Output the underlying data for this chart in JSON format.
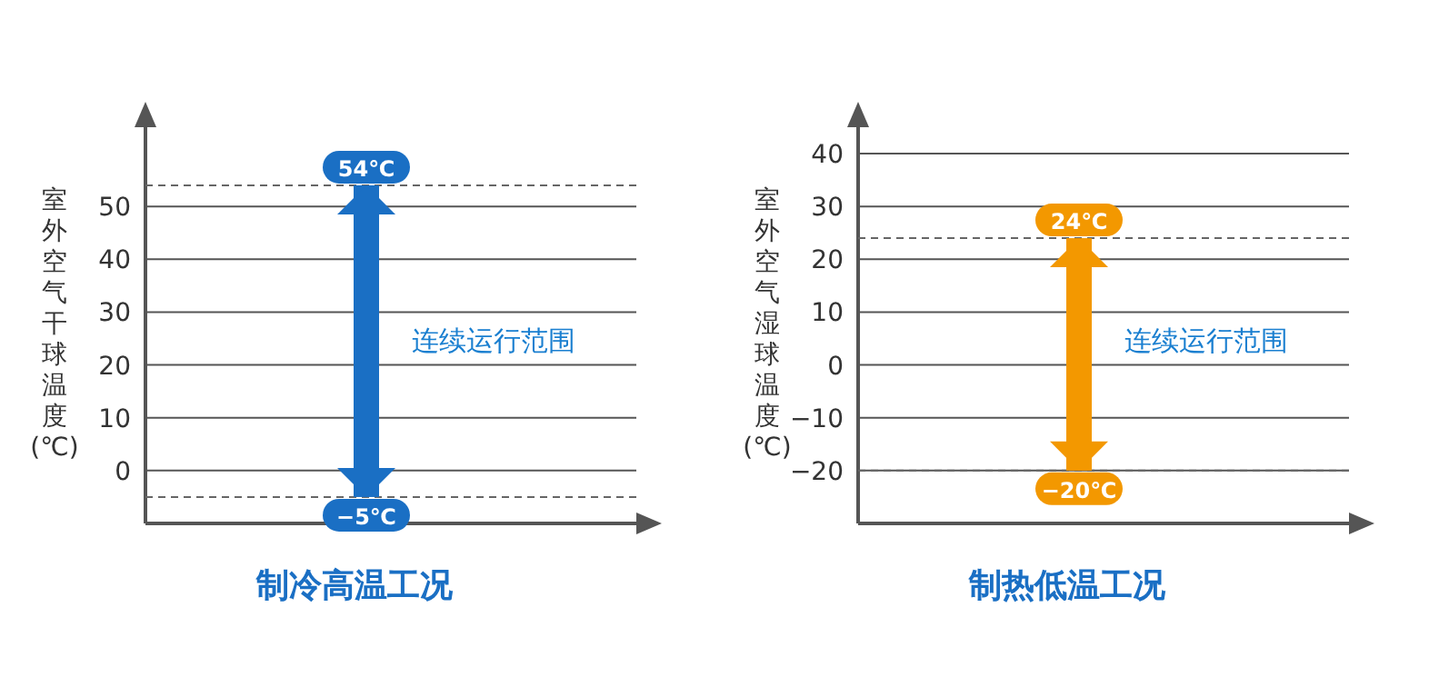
{
  "chart_data": [
    {
      "type": "bar",
      "title": "制冷高温工况",
      "ylabel": "室外空气干球温度(℃)",
      "categories": [
        null
      ],
      "values": [
        59
      ],
      "base": [
        -5
      ],
      "colors": [
        "#1a6fc4"
      ],
      "ylim": [
        -10,
        65
      ],
      "yticks": [
        0,
        10,
        20,
        30,
        40,
        50
      ],
      "grid": "y",
      "ref_lines": [
        {
          "axis": "y",
          "value": 54,
          "label": "54℃",
          "line_style": "dashed"
        },
        {
          "axis": "y",
          "value": -5,
          "label": "−5℃",
          "line_style": "dashed"
        }
      ],
      "annotations": [
        "连续运行范围"
      ]
    },
    {
      "type": "bar",
      "title": "制热低温工况",
      "ylabel": "室外空气湿球温度(℃)",
      "categories": [
        null
      ],
      "values": [
        44
      ],
      "base": [
        -20
      ],
      "colors": [
        "#f39800"
      ],
      "ylim": [
        -30,
        45
      ],
      "yticks": [
        {
          "value": -20,
          "label": "−20"
        },
        {
          "value": -10,
          "label": "−10"
        },
        0,
        10,
        20,
        30,
        40
      ],
      "grid": "y",
      "ref_lines": [
        {
          "axis": "y",
          "value": 24,
          "label": "24℃",
          "line_style": "dashed"
        },
        {
          "axis": "y",
          "value": -20,
          "label": "−20℃",
          "line_style": "dashed"
        }
      ],
      "annotations": [
        "连续运行范围"
      ]
    }
  ]
}
